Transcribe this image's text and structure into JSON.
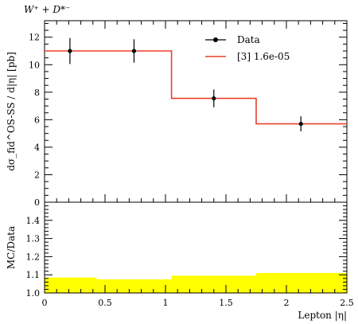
{
  "chart_data": {
    "type": "step",
    "title": "W⁺ + D*⁻",
    "xlabel": "Lepton |η|",
    "ylabel": "dσ_fid^OS-SS / d|η| [pb]",
    "xlim": [
      0,
      2.5
    ],
    "ylim": [
      0,
      13.2
    ],
    "x_ticks": [
      0,
      0.5,
      1,
      1.5,
      2,
      2.5
    ],
    "x_tick_labels": [
      "0",
      "0.5",
      "1",
      "1.5",
      "2",
      "2.5"
    ],
    "y_ticks": [
      0,
      2,
      4,
      6,
      8,
      10,
      12
    ],
    "y_tick_labels": [
      "0",
      "2",
      "4",
      "6",
      "8",
      "10",
      "12"
    ],
    "bin_edges": [
      0,
      0.5,
      1.05,
      1.75,
      2.5
    ],
    "series": [
      {
        "name": "Data",
        "kind": "points",
        "color": "#000000",
        "x": [
          0.21,
          0.74,
          1.4,
          2.12
        ],
        "y": [
          11.0,
          11.0,
          7.55,
          5.7
        ],
        "yerr": [
          0.95,
          0.85,
          0.65,
          0.55
        ]
      },
      {
        "name": "[3] 1.6e-05",
        "kind": "step",
        "color": "#e8412a",
        "values": [
          11.0,
          11.0,
          7.55,
          5.7
        ]
      }
    ],
    "legend_position": "top-right",
    "ratio": {
      "ylabel": "MC/Data",
      "ylim": [
        1.0,
        1.5
      ],
      "y_ticks": [
        1.0,
        1.1,
        1.2,
        1.3,
        1.4
      ],
      "y_tick_labels": [
        "1.0",
        "1.1",
        "1.2",
        "1.3",
        "1.4"
      ],
      "band_color": "#ffff00",
      "band_bin_edges": [
        0,
        0.43,
        1.05,
        1.75,
        2.5
      ],
      "band_upper": [
        1.085,
        1.075,
        1.095,
        1.11
      ],
      "band_lower": [
        1.0,
        1.0,
        1.0,
        1.0
      ]
    }
  }
}
